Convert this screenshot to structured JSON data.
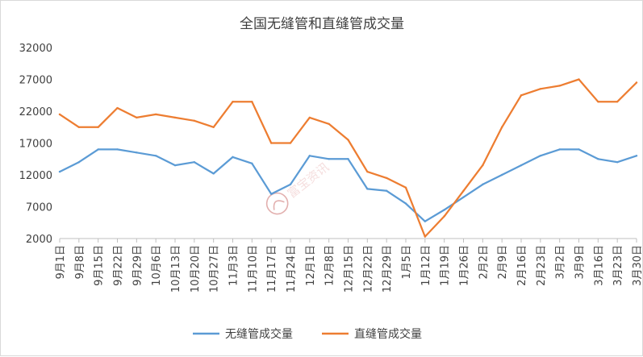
{
  "chart_data": {
    "type": "line",
    "title": "全国无缝管和直缝管成交量",
    "xlabel": "",
    "ylabel": "",
    "ylim": [
      2000,
      32000
    ],
    "yticks": [
      "32000",
      "27000",
      "22000",
      "17000",
      "12000",
      "7000",
      "2000"
    ],
    "grid": false,
    "legend_position": "bottom",
    "categories": [
      "9月1日",
      "9月8日",
      "9月15日",
      "9月22日",
      "9月29日",
      "10月6日",
      "10月13日",
      "10月20日",
      "10月27日",
      "11月3日",
      "11月10日",
      "11月17日",
      "11月24日",
      "12月1日",
      "12月8日",
      "12月15日",
      "12月22日",
      "12月29日",
      "1月5日",
      "1月12日",
      "1月19日",
      "1月26日",
      "2月2日",
      "2月9日",
      "2月16日",
      "2月23日",
      "3月2日",
      "3月9日",
      "3月16日",
      "3月23日",
      "3月30日"
    ],
    "series": [
      {
        "name": "无缝管成交量",
        "color": "#5b9bd5",
        "values": [
          12500,
          14000,
          16000,
          16000,
          15500,
          15000,
          13500,
          14000,
          12200,
          14800,
          13800,
          9000,
          10500,
          15000,
          14500,
          14500,
          9800,
          9500,
          7500,
          4700,
          6500,
          8500,
          10500,
          12000,
          13500,
          15000,
          16000,
          16000,
          14500,
          14000,
          15000
        ]
      },
      {
        "name": "直缝管成交量",
        "color": "#ed7d31",
        "values": [
          21500,
          19500,
          19500,
          22500,
          21000,
          21500,
          21000,
          20500,
          19500,
          23500,
          23500,
          17000,
          17000,
          21000,
          20000,
          17500,
          12500,
          11500,
          10000,
          2300,
          5500,
          9500,
          13500,
          19500,
          24500,
          25500,
          26000,
          27000,
          23500,
          23500,
          26500
        ]
      }
    ]
  },
  "watermark": {
    "text": "富宝资讯",
    "color": "#c0504d"
  }
}
